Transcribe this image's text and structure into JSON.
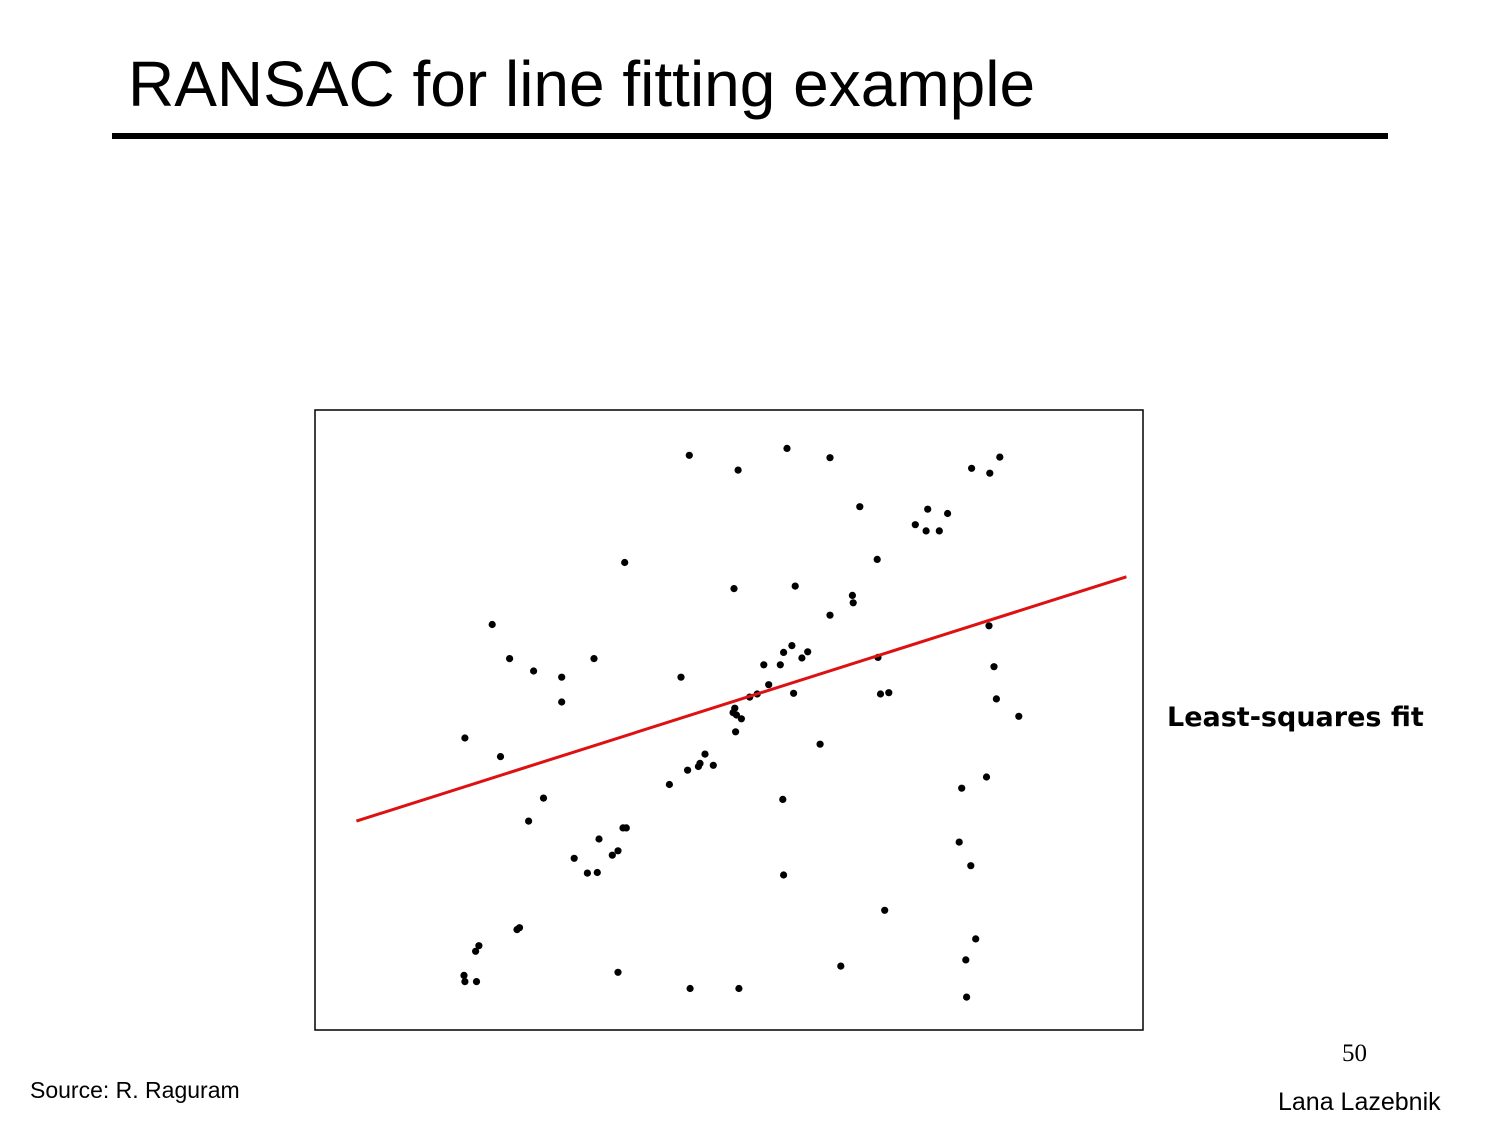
{
  "slide": {
    "title": "RANSAC for line fitting example",
    "source": "Source: R. Raguram",
    "page_number": "50",
    "author": "Lana Lazebnik"
  },
  "chart_data": {
    "type": "scatter",
    "annotation": "Least-squares fit",
    "xlim": [
      0,
      100
    ],
    "ylim": [
      0,
      100
    ],
    "grid": false,
    "point_color": "#000000",
    "fit_line": {
      "color": "#dd1111",
      "x": [
        5,
        98
      ],
      "y": [
        33.7,
        73.1
      ]
    },
    "points": [
      [
        45.2,
        92.7
      ],
      [
        51.1,
        90.3
      ],
      [
        57.0,
        93.8
      ],
      [
        62.2,
        92.3
      ],
      [
        61.0,
        46.1
      ],
      [
        65.8,
        84.4
      ],
      [
        79.3,
        90.6
      ],
      [
        81.5,
        89.8
      ],
      [
        82.7,
        92.4
      ],
      [
        72.5,
        81.5
      ],
      [
        74.0,
        84.0
      ],
      [
        76.4,
        83.3
      ],
      [
        73.8,
        80.5
      ],
      [
        75.4,
        80.5
      ],
      [
        67.9,
        75.9
      ],
      [
        37.4,
        75.4
      ],
      [
        50.6,
        71.2
      ],
      [
        58.0,
        71.6
      ],
      [
        64.9,
        70.1
      ],
      [
        65.0,
        68.9
      ],
      [
        62.2,
        66.9
      ],
      [
        21.4,
        65.4
      ],
      [
        23.5,
        59.9
      ],
      [
        26.4,
        57.9
      ],
      [
        29.8,
        56.9
      ],
      [
        29.8,
        52.9
      ],
      [
        33.7,
        59.9
      ],
      [
        44.2,
        56.9
      ],
      [
        57.6,
        62.0
      ],
      [
        56.6,
        60.9
      ],
      [
        59.5,
        61.0
      ],
      [
        58.8,
        60.0
      ],
      [
        54.2,
        58.9
      ],
      [
        56.2,
        58.9
      ],
      [
        54.8,
        55.7
      ],
      [
        53.4,
        54.2
      ],
      [
        52.5,
        53.7
      ],
      [
        50.7,
        51.9
      ],
      [
        50.9,
        50.8
      ],
      [
        51.5,
        50.2
      ],
      [
        50.5,
        51.2
      ],
      [
        50.8,
        48.1
      ],
      [
        57.8,
        54.3
      ],
      [
        68.3,
        54.2
      ],
      [
        69.3,
        54.4
      ],
      [
        68.0,
        60.1
      ],
      [
        81.4,
        65.2
      ],
      [
        82.0,
        58.6
      ],
      [
        82.3,
        53.4
      ],
      [
        85.0,
        50.6
      ],
      [
        18.1,
        47.1
      ],
      [
        22.4,
        44.1
      ],
      [
        47.1,
        44.5
      ],
      [
        46.3,
        42.5
      ],
      [
        46.5,
        43.0
      ],
      [
        48.1,
        42.7
      ],
      [
        45.0,
        41.9
      ],
      [
        42.8,
        39.6
      ],
      [
        78.1,
        39.0
      ],
      [
        81.1,
        40.8
      ],
      [
        27.6,
        37.4
      ],
      [
        56.5,
        37.2
      ],
      [
        25.8,
        33.7
      ],
      [
        37.6,
        32.6
      ],
      [
        37.2,
        32.6
      ],
      [
        34.3,
        30.8
      ],
      [
        35.9,
        28.2
      ],
      [
        36.6,
        28.9
      ],
      [
        31.3,
        27.7
      ],
      [
        32.9,
        25.3
      ],
      [
        34.1,
        25.4
      ],
      [
        56.6,
        25.0
      ],
      [
        77.8,
        30.3
      ],
      [
        79.2,
        26.5
      ],
      [
        68.8,
        19.3
      ],
      [
        24.7,
        16.5
      ],
      [
        24.4,
        16.2
      ],
      [
        19.4,
        12.7
      ],
      [
        19.8,
        13.6
      ],
      [
        18.0,
        8.8
      ],
      [
        18.1,
        7.8
      ],
      [
        19.5,
        7.8
      ],
      [
        36.6,
        9.3
      ],
      [
        63.5,
        10.3
      ],
      [
        78.6,
        11.3
      ],
      [
        79.8,
        14.7
      ],
      [
        78.7,
        5.3
      ],
      [
        45.3,
        6.7
      ],
      [
        51.2,
        6.7
      ]
    ]
  }
}
